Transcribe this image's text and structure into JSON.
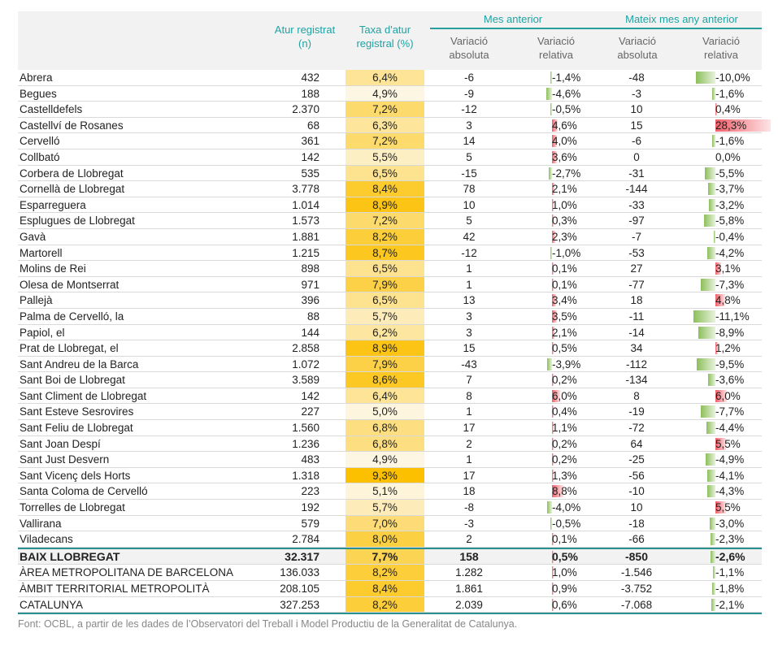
{
  "header": {
    "atur": "Atur registrat",
    "atur_unit": "(n)",
    "taxa": "Taxa d'atur",
    "taxa_unit": "registral (%)",
    "group1": "Mes anterior",
    "group2": "Mateix mes any anterior",
    "var": "Variació",
    "abs": "absoluta",
    "rel": "relativa"
  },
  "colors": {
    "teal": "#1fa3a3",
    "heat_low": "#fdf6e3",
    "heat_high": "#fcc000",
    "neg_bar": "#8cbf5a",
    "pos_bar": "#f0606a"
  },
  "rows": [
    [
      "Abrera",
      "432",
      "6,4%",
      "-6",
      "-1,4%",
      "-48",
      "-10,0%"
    ],
    [
      "Begues",
      "188",
      "4,9%",
      "-9",
      "-4,6%",
      "-3",
      "-1,6%"
    ],
    [
      "Castelldefels",
      "2.370",
      "7,2%",
      "-12",
      "-0,5%",
      "10",
      "0,4%"
    ],
    [
      "Castellví de Rosanes",
      "68",
      "6,3%",
      "3",
      "4,6%",
      "15",
      "28,3%"
    ],
    [
      "Cervelló",
      "361",
      "7,2%",
      "14",
      "4,0%",
      "-6",
      "-1,6%"
    ],
    [
      "Collbató",
      "142",
      "5,5%",
      "5",
      "3,6%",
      "0",
      "0,0%"
    ],
    [
      "Corbera de Llobregat",
      "535",
      "6,5%",
      "-15",
      "-2,7%",
      "-31",
      "-5,5%"
    ],
    [
      "Cornellà de Llobregat",
      "3.778",
      "8,4%",
      "78",
      "2,1%",
      "-144",
      "-3,7%"
    ],
    [
      "Esparreguera",
      "1.014",
      "8,9%",
      "10",
      "1,0%",
      "-33",
      "-3,2%"
    ],
    [
      "Esplugues de Llobregat",
      "1.573",
      "7,2%",
      "5",
      "0,3%",
      "-97",
      "-5,8%"
    ],
    [
      "Gavà",
      "1.881",
      "8,2%",
      "42",
      "2,3%",
      "-7",
      "-0,4%"
    ],
    [
      "Martorell",
      "1.215",
      "8,7%",
      "-12",
      "-1,0%",
      "-53",
      "-4,2%"
    ],
    [
      "Molins de Rei",
      "898",
      "6,5%",
      "1",
      "0,1%",
      "27",
      "3,1%"
    ],
    [
      "Olesa de Montserrat",
      "971",
      "7,9%",
      "1",
      "0,1%",
      "-77",
      "-7,3%"
    ],
    [
      "Pallejà",
      "396",
      "6,5%",
      "13",
      "3,4%",
      "18",
      "4,8%"
    ],
    [
      "Palma de Cervelló, la",
      "88",
      "5,7%",
      "3",
      "3,5%",
      "-11",
      "-11,1%"
    ],
    [
      "Papiol, el",
      "144",
      "6,2%",
      "3",
      "2,1%",
      "-14",
      "-8,9%"
    ],
    [
      "Prat de Llobregat, el",
      "2.858",
      "8,9%",
      "15",
      "0,5%",
      "34",
      "1,2%"
    ],
    [
      "Sant Andreu de la Barca",
      "1.072",
      "7,9%",
      "-43",
      "-3,9%",
      "-112",
      "-9,5%"
    ],
    [
      "Sant Boi de Llobregat",
      "3.589",
      "8,6%",
      "7",
      "0,2%",
      "-134",
      "-3,6%"
    ],
    [
      "Sant Climent de Llobregat",
      "142",
      "6,4%",
      "8",
      "6,0%",
      "8",
      "6,0%"
    ],
    [
      "Sant Esteve Sesrovires",
      "227",
      "5,0%",
      "1",
      "0,4%",
      "-19",
      "-7,7%"
    ],
    [
      "Sant Feliu de Llobregat",
      "1.560",
      "6,8%",
      "17",
      "1,1%",
      "-72",
      "-4,4%"
    ],
    [
      "Sant Joan Despí",
      "1.236",
      "6,8%",
      "2",
      "0,2%",
      "64",
      "5,5%"
    ],
    [
      "Sant Just Desvern",
      "483",
      "4,9%",
      "1",
      "0,2%",
      "-25",
      "-4,9%"
    ],
    [
      "Sant Vicenç dels Horts",
      "1.318",
      "9,3%",
      "17",
      "1,3%",
      "-56",
      "-4,1%"
    ],
    [
      "Santa Coloma de Cervelló",
      "223",
      "5,1%",
      "18",
      "8,8%",
      "-10",
      "-4,3%"
    ],
    [
      "Torrelles de Llobregat",
      "192",
      "5,7%",
      "-8",
      "-4,0%",
      "10",
      "5,5%"
    ],
    [
      "Vallirana",
      "579",
      "7,0%",
      "-3",
      "-0,5%",
      "-18",
      "-3,0%"
    ],
    [
      "Viladecans",
      "2.784",
      "8,0%",
      "2",
      "0,1%",
      "-66",
      "-2,3%"
    ]
  ],
  "totals": [
    [
      "BAIX LLOBREGAT",
      "32.317",
      "7,7%",
      "158",
      "0,5%",
      "-850",
      "-2,6%"
    ],
    [
      "ÀREA METROPOLITANA DE BARCELONA",
      "136.033",
      "8,2%",
      "1.282",
      "1,0%",
      "-1.546",
      "-1,1%"
    ],
    [
      "ÀMBIT TERRITORIAL METROPOLITÀ",
      "208.105",
      "8,4%",
      "1.861",
      "0,9%",
      "-3.752",
      "-1,8%"
    ],
    [
      "CATALUNYA",
      "327.253",
      "8,2%",
      "2.039",
      "0,6%",
      "-7.068",
      "-2,1%"
    ]
  ],
  "footer": "Font: OCBL, a partir de les dades de l’Observatori del Treball i Model Productiu de la Generalitat de Catalunya."
}
